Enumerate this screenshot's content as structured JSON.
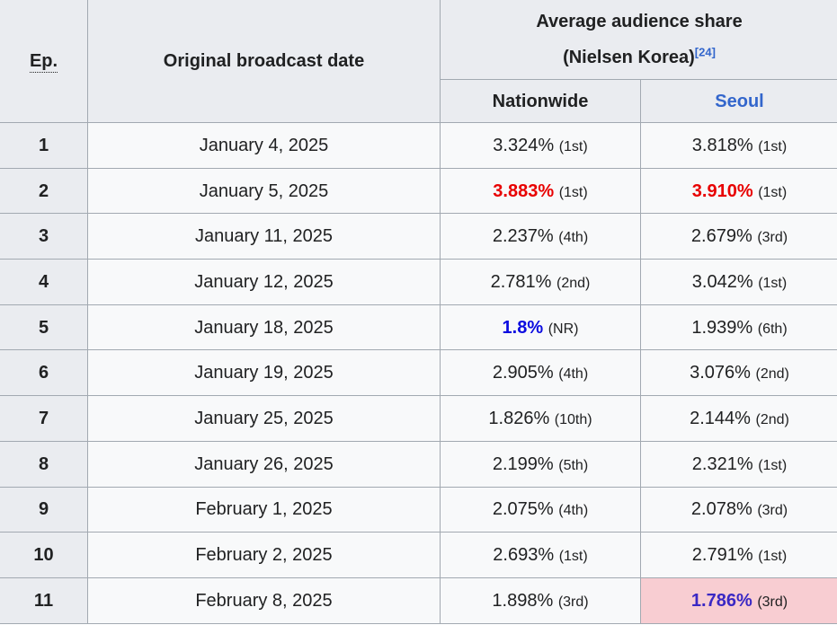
{
  "table": {
    "headers": {
      "ep": "Ep.",
      "date": "Original broadcast date",
      "share_line1": "Average audience share",
      "share_line2": "(Nielsen Korea)",
      "share_ref": "[24]",
      "nationwide": "Nationwide",
      "seoul": "Seoul"
    },
    "rows": [
      {
        "ep": "1",
        "date": "January 4, 2025",
        "nationwide": {
          "value": "3.324%",
          "rank": "(1st)",
          "style": "normal"
        },
        "seoul": {
          "value": "3.818%",
          "rank": "(1st)",
          "style": "normal"
        }
      },
      {
        "ep": "2",
        "date": "January 5, 2025",
        "nationwide": {
          "value": "3.883%",
          "rank": "(1st)",
          "style": "highest"
        },
        "seoul": {
          "value": "3.910%",
          "rank": "(1st)",
          "style": "highest"
        }
      },
      {
        "ep": "3",
        "date": "January 11, 2025",
        "nationwide": {
          "value": "2.237%",
          "rank": "(4th)",
          "style": "normal"
        },
        "seoul": {
          "value": "2.679%",
          "rank": "(3rd)",
          "style": "normal"
        }
      },
      {
        "ep": "4",
        "date": "January 12, 2025",
        "nationwide": {
          "value": "2.781%",
          "rank": "(2nd)",
          "style": "normal"
        },
        "seoul": {
          "value": "3.042%",
          "rank": "(1st)",
          "style": "normal"
        }
      },
      {
        "ep": "5",
        "date": "January 18, 2025",
        "nationwide": {
          "value": "1.8%",
          "rank": "(NR)",
          "style": "lowest"
        },
        "seoul": {
          "value": "1.939%",
          "rank": "(6th)",
          "style": "normal"
        }
      },
      {
        "ep": "6",
        "date": "January 19, 2025",
        "nationwide": {
          "value": "2.905%",
          "rank": "(4th)",
          "style": "normal"
        },
        "seoul": {
          "value": "3.076%",
          "rank": "(2nd)",
          "style": "normal"
        }
      },
      {
        "ep": "7",
        "date": "January 25, 2025",
        "nationwide": {
          "value": "1.826%",
          "rank": "(10th)",
          "style": "normal"
        },
        "seoul": {
          "value": "2.144%",
          "rank": "(2nd)",
          "style": "normal"
        }
      },
      {
        "ep": "8",
        "date": "January 26, 2025",
        "nationwide": {
          "value": "2.199%",
          "rank": "(5th)",
          "style": "normal"
        },
        "seoul": {
          "value": "2.321%",
          "rank": "(1st)",
          "style": "normal"
        }
      },
      {
        "ep": "9",
        "date": "February 1, 2025",
        "nationwide": {
          "value": "2.075%",
          "rank": "(4th)",
          "style": "normal"
        },
        "seoul": {
          "value": "2.078%",
          "rank": "(3rd)",
          "style": "normal"
        }
      },
      {
        "ep": "10",
        "date": "February 2, 2025",
        "nationwide": {
          "value": "2.693%",
          "rank": "(1st)",
          "style": "normal"
        },
        "seoul": {
          "value": "2.791%",
          "rank": "(1st)",
          "style": "normal"
        }
      },
      {
        "ep": "11",
        "date": "February 8, 2025",
        "nationwide": {
          "value": "1.898%",
          "rank": "(3rd)",
          "style": "normal"
        },
        "seoul": {
          "value": "1.786%",
          "rank": "(3rd)",
          "style": "lowest-highlight"
        }
      }
    ],
    "colors": {
      "border": "#a2a9b1",
      "header_bg": "#eaecf0",
      "cell_bg": "#f8f9fa",
      "text": "#202122",
      "link": "#3366cc",
      "highest": "#e80000",
      "lowest": "#0b0be0",
      "lowest_alt": "#3a28c4",
      "lowest_highlight_bg": "#f8cdd2"
    }
  }
}
